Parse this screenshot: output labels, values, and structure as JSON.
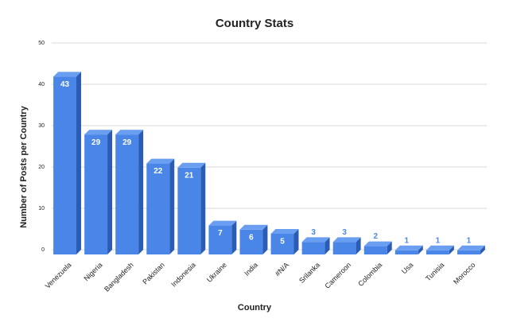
{
  "chart_data": {
    "type": "bar",
    "title": "Country Stats",
    "x_label": "Country",
    "y_label": "Number of Posts per Country",
    "categories": [
      "Venezuela",
      "Nigeria",
      "Bangladesh",
      "Pakistan",
      "Indonesia",
      "Ukraine",
      "India",
      "#N/A",
      "Srilanka",
      "Cameroon",
      "Colombia",
      "Usa",
      "Tunisia",
      "Morocco"
    ],
    "values": [
      43,
      29,
      29,
      22,
      21,
      7,
      6,
      5,
      3,
      3,
      2,
      1,
      1,
      1
    ],
    "color": "#4a86e8",
    "ylim": [
      0,
      50
    ],
    "yticks": [
      0,
      10,
      20,
      30,
      40,
      50
    ],
    "grid": true
  }
}
